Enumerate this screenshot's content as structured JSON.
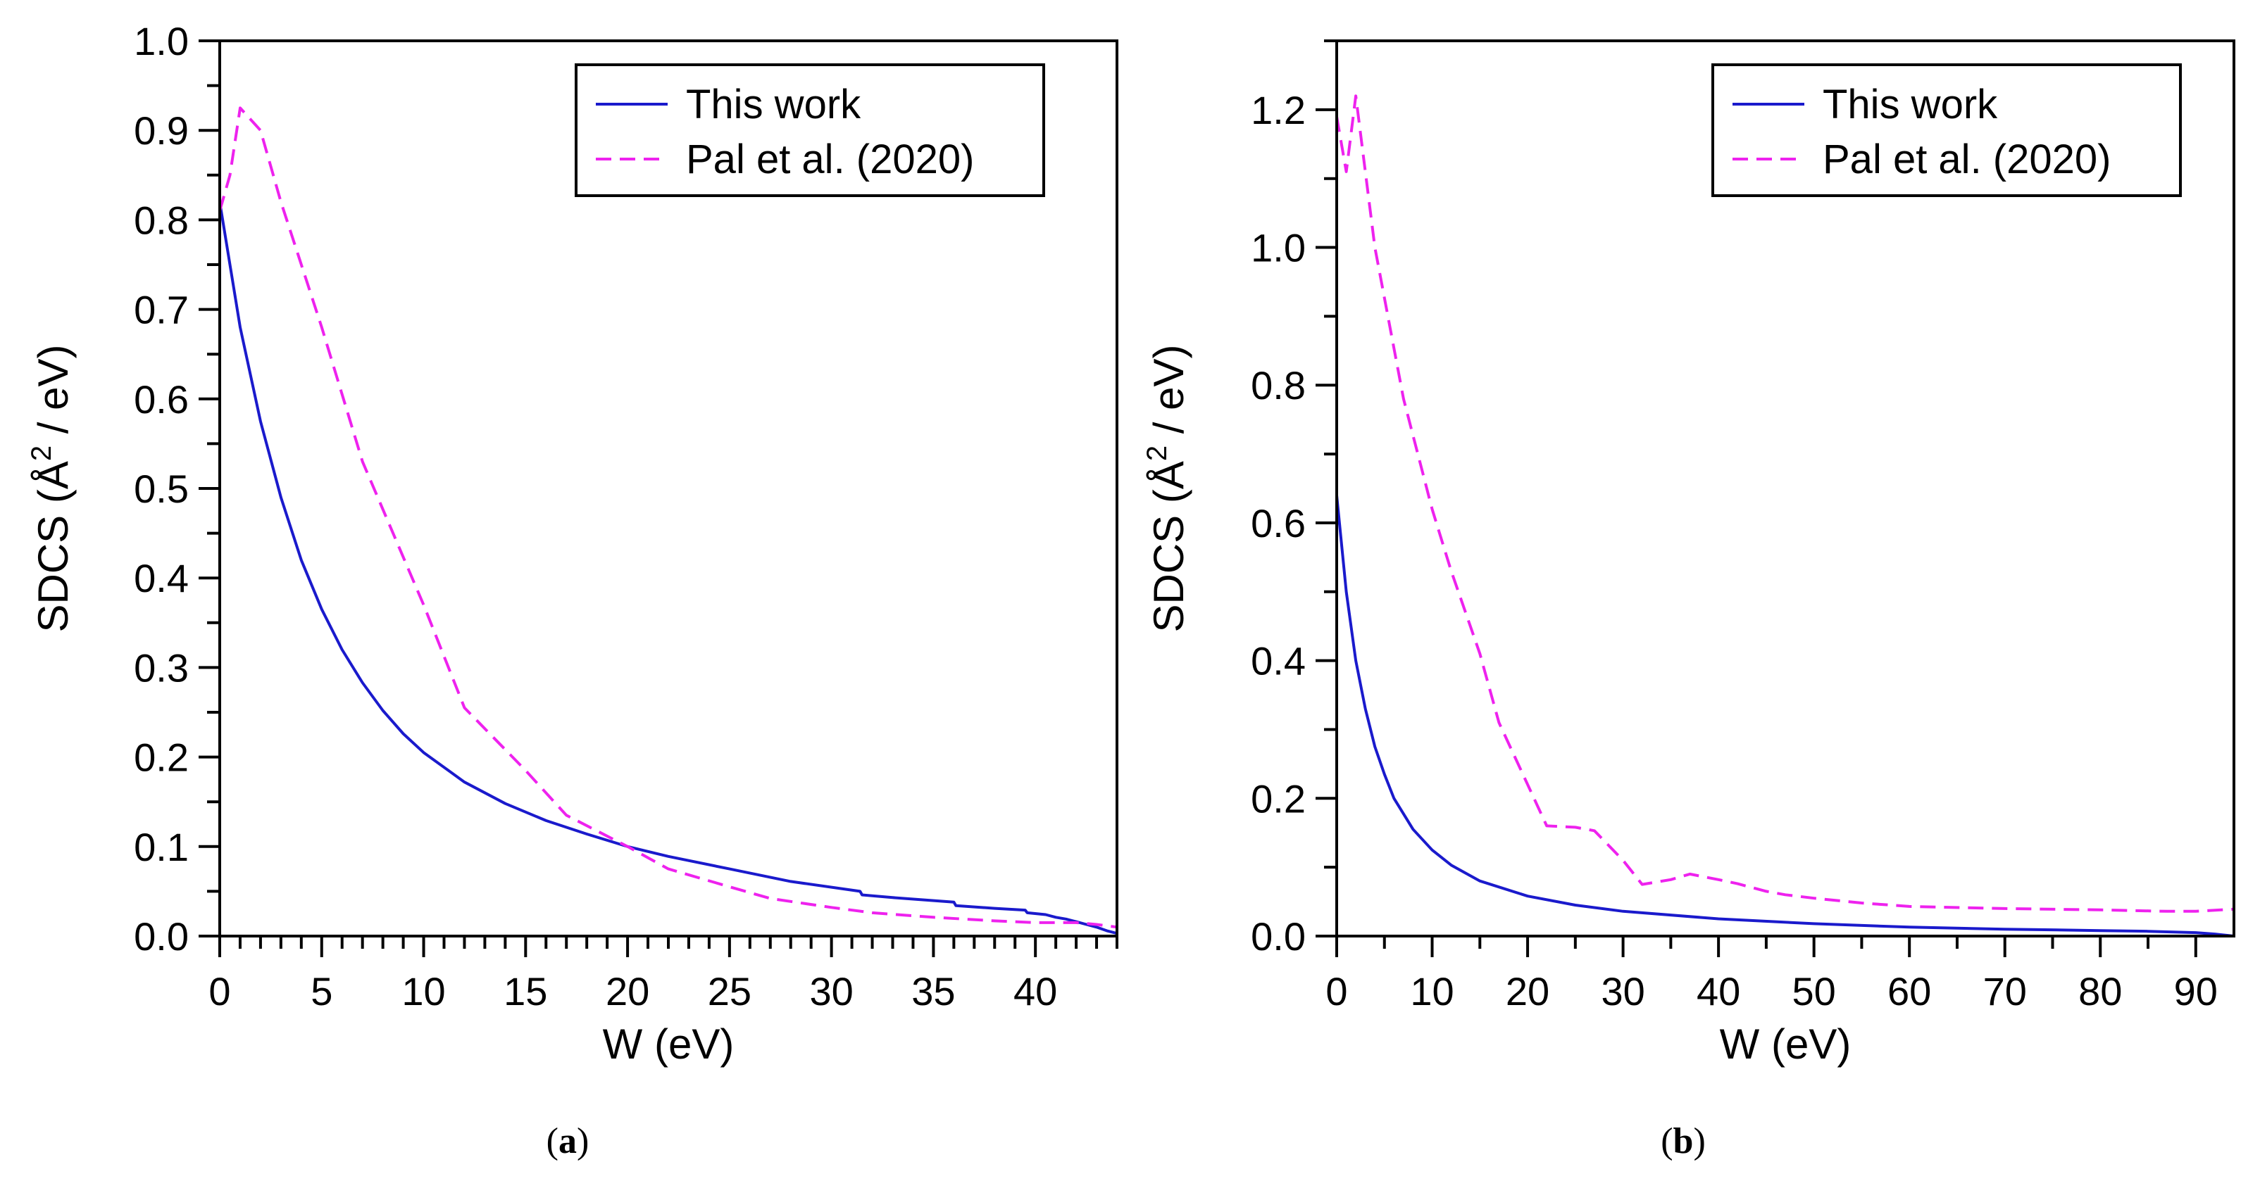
{
  "colors": {
    "this_work": "#1a1acc",
    "pal_et_al": "#ee22ee",
    "axis": "#000000"
  },
  "chart_data": [
    {
      "type": "line",
      "panel_caption": {
        "open": "(",
        "letter": "a",
        "close": ")"
      },
      "xlabel": "W (eV)",
      "ylabel": {
        "main": "SDCS (Å",
        "sup": "2",
        "unit": " / eV)"
      },
      "xlim": [
        0,
        44
      ],
      "ylim": [
        0,
        1.0
      ],
      "xticks": [
        0,
        5,
        10,
        15,
        20,
        25,
        30,
        35,
        40
      ],
      "xtick_labels": [
        "0",
        "5",
        "10",
        "15",
        "20",
        "25",
        "30",
        "35",
        "40"
      ],
      "xminor_step": 1,
      "yticks": [
        0,
        0.1,
        0.2,
        0.3,
        0.4,
        0.5,
        0.6,
        0.7,
        0.8,
        0.9,
        1.0
      ],
      "ytick_labels": [
        "0.0",
        "0.1",
        "0.2",
        "0.3",
        "0.4",
        "0.5",
        "0.6",
        "0.7",
        "0.8",
        "0.9",
        "1.0"
      ],
      "yminor_step": 0.05,
      "legend": {
        "position": "top-right"
      },
      "series": [
        {
          "name": "This work",
          "style": "solid",
          "color_key": "this_work",
          "x": [
            0,
            1,
            2,
            3,
            4,
            5,
            6,
            7,
            8,
            9,
            10,
            12,
            14,
            16,
            18,
            20,
            22,
            25,
            28,
            31.4,
            31.5,
            33,
            36,
            36.1,
            38,
            39.5,
            39.6,
            40.5,
            41,
            41.5,
            42,
            42.5,
            43,
            43.5,
            44
          ],
          "y": [
            0.82,
            0.68,
            0.575,
            0.49,
            0.42,
            0.365,
            0.32,
            0.283,
            0.252,
            0.226,
            0.205,
            0.172,
            0.148,
            0.129,
            0.114,
            0.1,
            0.089,
            0.075,
            0.061,
            0.05,
            0.046,
            0.043,
            0.038,
            0.034,
            0.031,
            0.029,
            0.026,
            0.024,
            0.021,
            0.019,
            0.016,
            0.013,
            0.01,
            0.006,
            0.003
          ]
        },
        {
          "name": "Pal et al. (2020)",
          "style": "dashed",
          "color_key": "pal_et_al",
          "x": [
            0,
            0.5,
            1,
            2,
            3,
            5,
            7,
            10,
            12,
            15,
            17,
            20,
            22,
            25,
            27,
            30,
            32,
            35,
            38,
            40,
            42,
            43,
            44
          ],
          "y": [
            0.81,
            0.85,
            0.925,
            0.9,
            0.82,
            0.68,
            0.53,
            0.37,
            0.255,
            0.185,
            0.135,
            0.1,
            0.075,
            0.055,
            0.042,
            0.032,
            0.026,
            0.021,
            0.017,
            0.015,
            0.015,
            0.013,
            0.01
          ]
        }
      ]
    },
    {
      "type": "line",
      "panel_caption": {
        "open": "(",
        "letter": "b",
        "close": ")"
      },
      "xlabel": "W (eV)",
      "ylabel": {
        "main": "SDCS (Å",
        "sup": "2",
        "unit": " / eV)"
      },
      "xlim": [
        0,
        94
      ],
      "ylim": [
        0,
        1.3
      ],
      "xticks": [
        0,
        10,
        20,
        30,
        40,
        50,
        60,
        70,
        80,
        90
      ],
      "xtick_labels": [
        "0",
        "10",
        "20",
        "30",
        "40",
        "50",
        "60",
        "70",
        "80",
        "90"
      ],
      "xminor_step": 5,
      "yticks": [
        0,
        0.2,
        0.4,
        0.6,
        0.8,
        1.0,
        1.2
      ],
      "ytick_labels": [
        "0.0",
        "0.2",
        "0.4",
        "0.6",
        "0.8",
        "1.0",
        "1.2"
      ],
      "yminor_step": 0.1,
      "legend": {
        "position": "top-right"
      },
      "series": [
        {
          "name": "This work",
          "style": "solid",
          "color_key": "this_work",
          "x": [
            0,
            1,
            2,
            3,
            4,
            5,
            6,
            8,
            10,
            12,
            15,
            20,
            25,
            30,
            40,
            50,
            60,
            70,
            80,
            85,
            90,
            92,
            94
          ],
          "y": [
            0.64,
            0.5,
            0.4,
            0.33,
            0.275,
            0.235,
            0.2,
            0.155,
            0.125,
            0.103,
            0.08,
            0.058,
            0.045,
            0.036,
            0.025,
            0.018,
            0.013,
            0.01,
            0.008,
            0.007,
            0.005,
            0.003,
            0.0
          ]
        },
        {
          "name": "Pal et al. (2020)",
          "style": "dashed",
          "color_key": "pal_et_al",
          "x": [
            0,
            1,
            2,
            4,
            7,
            10,
            12,
            15,
            17,
            20,
            22,
            25,
            27,
            30,
            32,
            35,
            37,
            40,
            42,
            45,
            47,
            50,
            55,
            60,
            70,
            80,
            87,
            90,
            94
          ],
          "y": [
            1.19,
            1.11,
            1.22,
            1.0,
            0.78,
            0.62,
            0.53,
            0.41,
            0.31,
            0.22,
            0.16,
            0.158,
            0.153,
            0.11,
            0.075,
            0.082,
            0.09,
            0.082,
            0.076,
            0.065,
            0.06,
            0.055,
            0.048,
            0.043,
            0.04,
            0.038,
            0.036,
            0.036,
            0.039
          ]
        }
      ]
    }
  ]
}
